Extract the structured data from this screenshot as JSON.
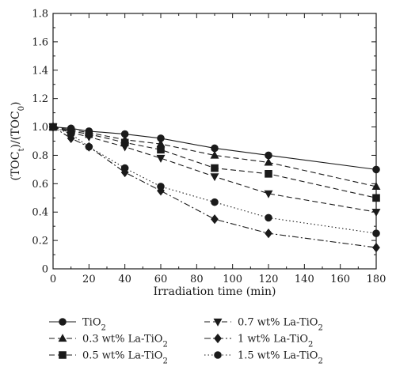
{
  "chart_data": {
    "type": "line",
    "xlabel": "Irradiation time (min)",
    "ylabel": "(TOC_t)/(TOC_0)",
    "ylabel_parts": {
      "open": "(TOC",
      "sub1": "t",
      "mid": ")/(TOC",
      "sub2": "0",
      "close": ")"
    },
    "xlim": [
      0,
      180
    ],
    "ylim": [
      0,
      1.8
    ],
    "x_ticks": [
      0,
      20,
      40,
      60,
      80,
      100,
      120,
      140,
      160,
      180
    ],
    "y_ticks": [
      0,
      0.2,
      0.4,
      0.6,
      0.8,
      1.0,
      1.2,
      1.4,
      1.6,
      1.8
    ],
    "x_tick_labels": [
      "0",
      "20",
      "40",
      "60",
      "80",
      "100",
      "120",
      "140",
      "160",
      "180"
    ],
    "y_tick_labels": [
      "0",
      "0.2",
      "0.4",
      "0.6",
      "0.8",
      "1.0",
      "1.2",
      "1.4",
      "1.6",
      "1.8"
    ],
    "grid": false,
    "legend_position": "bottom",
    "series": [
      {
        "name": "TiO2",
        "name_main": "TiO",
        "name_sub": "2",
        "marker": "circle",
        "line": "solid",
        "x": [
          0,
          10,
          20,
          40,
          60,
          90,
          120,
          180
        ],
        "y": [
          1.0,
          0.99,
          0.97,
          0.95,
          0.92,
          0.85,
          0.8,
          0.7
        ]
      },
      {
        "name": "0.3 wt% La-TiO2",
        "name_main": "0.3 wt% La-TiO",
        "name_sub": "2",
        "marker": "triangle-up",
        "line": "dashed",
        "x": [
          0,
          10,
          20,
          40,
          60,
          90,
          120,
          180
        ],
        "y": [
          1.0,
          0.98,
          0.96,
          0.91,
          0.88,
          0.8,
          0.75,
          0.58
        ]
      },
      {
        "name": "0.5 wt% La-TiO2",
        "name_main": "0.5 wt% La-TiO",
        "name_sub": "2",
        "marker": "square",
        "line": "dashed",
        "x": [
          0,
          10,
          20,
          40,
          60,
          90,
          120,
          180
        ],
        "y": [
          1.0,
          0.97,
          0.95,
          0.89,
          0.84,
          0.71,
          0.67,
          0.5
        ]
      },
      {
        "name": "0.7 wt% La-TiO2",
        "name_main": "0.7 wt% La-TiO",
        "name_sub": "2",
        "marker": "triangle-down",
        "line": "dashed",
        "x": [
          0,
          10,
          20,
          40,
          60,
          90,
          120,
          180
        ],
        "y": [
          1.0,
          0.96,
          0.93,
          0.86,
          0.78,
          0.65,
          0.53,
          0.4
        ]
      },
      {
        "name": "1 wt% La-TiO2",
        "name_main": "1 wt% La-TiO",
        "name_sub": "2",
        "marker": "diamond",
        "line": "dashdot",
        "x": [
          0,
          10,
          20,
          40,
          60,
          90,
          120,
          180
        ],
        "y": [
          1.0,
          0.92,
          0.86,
          0.68,
          0.55,
          0.35,
          0.25,
          0.15
        ]
      },
      {
        "name": "1.5 wt% La-TiO2",
        "name_main": "1.5 wt% La-TiO",
        "name_sub": "2",
        "marker": "circle",
        "line": "dotted",
        "x": [
          0,
          10,
          20,
          40,
          60,
          90,
          120,
          180
        ],
        "y": [
          1.0,
          0.95,
          0.86,
          0.71,
          0.58,
          0.47,
          0.36,
          0.25
        ]
      }
    ]
  }
}
